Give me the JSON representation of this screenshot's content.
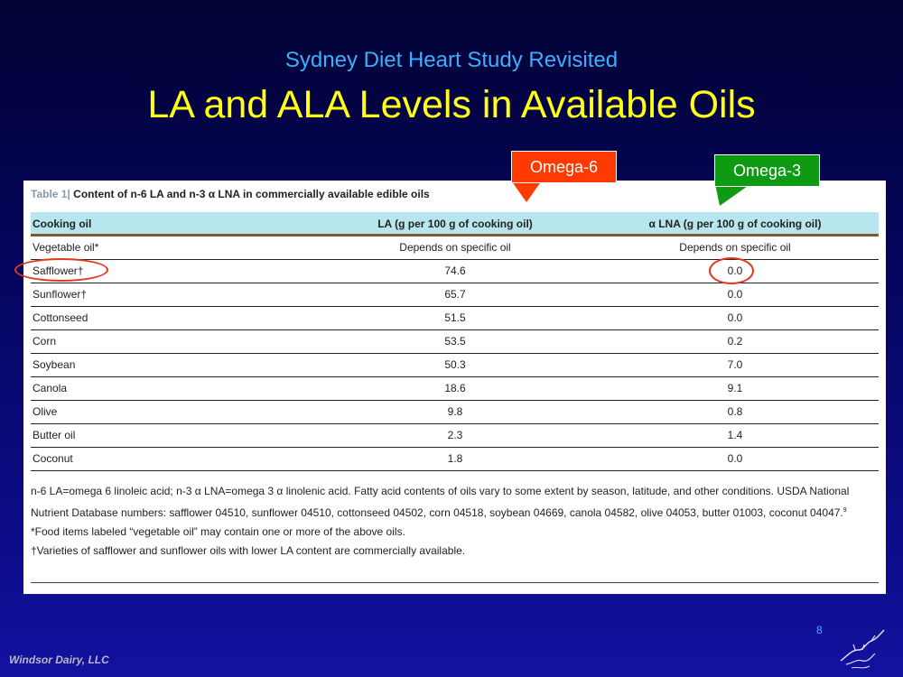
{
  "slide": {
    "subtitle": "Sydney Diet Heart Study Revisited",
    "title": "LA and ALA Levels in Available Oils",
    "page_number": "8",
    "footer": "Windsor Dairy, LLC"
  },
  "callouts": {
    "omega6": "Omega-6",
    "omega3": "Omega-3",
    "omega6_color": "#ff3a00",
    "omega3_color": "#0f9a14"
  },
  "table": {
    "caption_number": "Table 1|",
    "caption_text": "Content of n-6 LA and n-3 α LNA in commercially available edible oils",
    "headers": [
      "Cooking oil",
      "LA (g per 100 g of cooking oil)",
      "α LNA (g per 100 g of cooking oil)"
    ],
    "rows": [
      [
        "Vegetable oil*",
        "Depends on specific oil",
        "Depends on specific oil"
      ],
      [
        "Safflower†",
        "74.6",
        "0.0"
      ],
      [
        "Sunflower†",
        "65.7",
        "0.0"
      ],
      [
        "Cottonseed",
        "51.5",
        "0.0"
      ],
      [
        "Corn",
        "53.5",
        "0.2"
      ],
      [
        "Soybean",
        "50.3",
        "7.0"
      ],
      [
        "Canola",
        "18.6",
        "9.1"
      ],
      [
        "Olive",
        "9.8",
        "0.8"
      ],
      [
        "Butter oil",
        "2.3",
        "1.4"
      ],
      [
        "Coconut",
        "1.8",
        "0.0"
      ]
    ],
    "notes": {
      "abbrev": "n-6 LA=omega 6 linoleic acid; n-3 α LNA=omega 3 α linolenic acid. Fatty acid contents of oils vary to some extent by season, latitude, and other conditions. USDA National Nutrient Database numbers: safflower 04510, sunflower 04510, cottonseed 04502, corn 04518, soybean 04669, canola 04582, olive 04053, butter 01003, coconut 04047.",
      "ref": "9",
      "vegetable": "*Food items labeled “vegetable oil” may contain one or more of the above oils.",
      "varieties": "†Varieties of safflower and sunflower oils with lower LA content are commercially available."
    }
  }
}
